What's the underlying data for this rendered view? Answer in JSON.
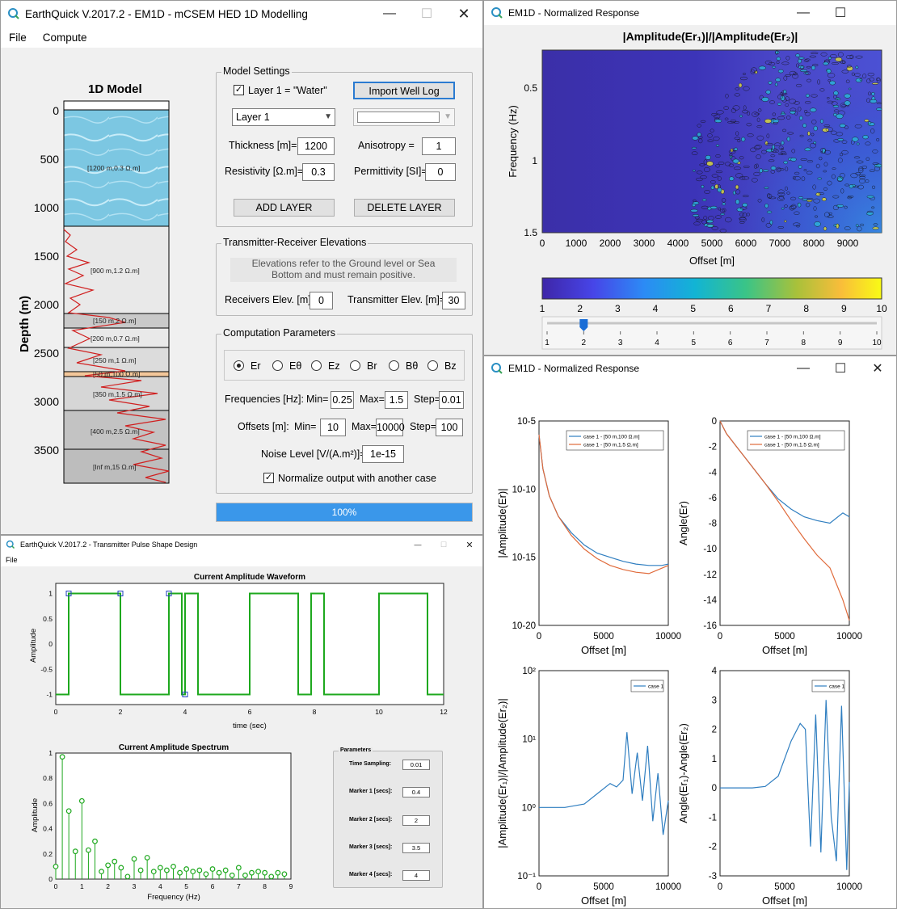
{
  "main": {
    "title": "EarthQuick V.2017.2 - EM1D - mCSEM HED 1D Modelling",
    "menu": [
      "File",
      "Compute"
    ],
    "model_title": "1D Model",
    "depth_label": "Depth (m)",
    "depth_ticks": [
      "0",
      "500",
      "1000",
      "1500",
      "2000",
      "2500",
      "3000",
      "3500"
    ],
    "layer_labels": [
      "[1200 m,0.3 Ω.m]",
      "[900 m,1.2 Ω.m]",
      "[150 m,2 Ω.m]",
      "[200 m,0.7 Ω.m]",
      "[250 m,1 Ω.m]",
      "[50 m,100 Ω.m]",
      "[350 m,1.5 Ω.m]",
      "[400 m,2.5 Ω.m]",
      "[Inf m,15 Ω.m]"
    ],
    "model_settings": {
      "legend": "Model Settings",
      "water_check_label": "Layer 1 = \"Water\"",
      "import_button": "Import Well Log",
      "layer_select": "Layer 1",
      "second_select": "",
      "thickness_label": "Thickness [m]=",
      "thickness_value": "1200",
      "anisotropy_label": "Anisotropy =",
      "anisotropy_value": "1",
      "resistivity_label": "Resistivity [Ω.m]=",
      "resistivity_value": "0.3",
      "permittivity_label": "Permittivity [SI]=",
      "permittivity_value": "0",
      "add_button": "ADD  LAYER",
      "delete_button": "DELETE  LAYER"
    },
    "tx_rx": {
      "legend": "Transmitter-Receiver Elevations",
      "note_line1": "Elevations refer to the Ground level or Sea",
      "note_line2": "Bottom and must remain positive.",
      "receivers_label": "Receivers Elev. [m]=",
      "receivers_value": "0",
      "transmitter_label": "Transmitter Elev. [m]=",
      "transmitter_value": "30"
    },
    "computation": {
      "legend": "Computation Parameters",
      "components": [
        "Er",
        "Eθ",
        "Ez",
        "Br",
        "Bθ",
        "Bz"
      ],
      "selected_component": "Er",
      "freq_label": "Frequencies [Hz]:",
      "min_label": "Min=",
      "max_label": "Max=",
      "step_label": "Step=",
      "freq_min": "0.25",
      "freq_max": "1.5",
      "freq_step": "0.01",
      "offsets_label": "Offsets [m]:",
      "off_min": "10",
      "off_max": "10000",
      "off_step": "100",
      "noise_label": "Noise Level [V/(A.m²)]=",
      "noise_value": "1e-15",
      "normalize_label": "Normalize output with another case"
    },
    "progress_text": "100%",
    "progress_fraction": 1.0
  },
  "norm_top": {
    "title": "EM1D - Normalized Response",
    "chart_title": "|Amplitude(Er₁)|/|Amplitude(Er₂)|",
    "ylabel": "Frequency (Hz)",
    "xlabel": "Offset [m]",
    "y_ticks": [
      "0.5",
      "1",
      "1.5"
    ],
    "x_ticks": [
      "0",
      "1000",
      "2000",
      "3000",
      "4000",
      "5000",
      "6000",
      "7000",
      "8000",
      "9000"
    ],
    "colorbar_ticks": [
      "1",
      "2",
      "3",
      "4",
      "5",
      "6",
      "7",
      "8",
      "9",
      "10"
    ],
    "slider_ticks": [
      "1",
      "2",
      "3",
      "4",
      "5",
      "6",
      "7",
      "8",
      "9",
      "10"
    ],
    "slider_value": 2
  },
  "norm_bottom": {
    "title": "EM1D - Normalized Response",
    "plots": [
      {
        "ylabel": "|Amplitude(Er)|",
        "xlabel": "Offset [m]",
        "y_ticks": [
          "10-5",
          "10-10",
          "10-15",
          "10-20"
        ],
        "x_ticks": [
          "0",
          "5000",
          "10000"
        ],
        "legend": [
          "case 1 - [50 m,100 Ω.m]",
          "case 1 - [50 m,1.5 Ω.m]"
        ]
      },
      {
        "ylabel": "Angle(Er)",
        "xlabel": "Offset [m]",
        "y_ticks": [
          "0",
          "-2",
          "-4",
          "-6",
          "-8",
          "-10",
          "-12",
          "-14",
          "-16"
        ],
        "x_ticks": [
          "0",
          "5000",
          "10000"
        ],
        "legend": [
          "case 1 - [50 m,100 Ω.m]",
          "case 1 - [50 m,1.5 Ω.m]"
        ]
      },
      {
        "ylabel": "|Amplitude(Er₁)|/|Amplitude(Er₂)|",
        "xlabel": "Offset [m]",
        "y_ticks": [
          "10²",
          "10¹",
          "10⁰",
          "10⁻¹"
        ],
        "x_ticks": [
          "0",
          "5000",
          "10000"
        ],
        "legend": [
          "case 1"
        ]
      },
      {
        "ylabel": "Angle(Er₁)-Angle(Er₂)",
        "xlabel": "Offset [m]",
        "y_ticks": [
          "4",
          "3",
          "2",
          "1",
          "0",
          "-1",
          "-2",
          "-3"
        ],
        "x_ticks": [
          "0",
          "5000",
          "10000"
        ],
        "legend": [
          "case 1"
        ]
      }
    ]
  },
  "pulse": {
    "title": "EarthQuick V.2017.2 - Transmitter Pulse Shape Design",
    "menu": [
      "File"
    ],
    "waveform_title": "Current Amplitude Waveform",
    "waveform_ylabel": "Amplitude",
    "waveform_xlabel": "time (sec)",
    "waveform_y_ticks": [
      "1",
      "0.5",
      "0",
      "-0.5",
      "-1"
    ],
    "waveform_x_ticks": [
      "0",
      "2",
      "4",
      "6",
      "8",
      "10",
      "12"
    ],
    "spectrum_title": "Current Amplitude Spectrum",
    "spectrum_ylabel": "Amplitude",
    "spectrum_xlabel": "Frequency (Hz)",
    "spectrum_y_ticks": [
      "1",
      "0.8",
      "0.6",
      "0.4",
      "0.2",
      "0"
    ],
    "spectrum_x_ticks": [
      "0",
      "1",
      "2",
      "3",
      "4",
      "5",
      "6",
      "7",
      "8",
      "9"
    ],
    "params_legend": "Parameters",
    "params": [
      {
        "label": "Time Sampling:",
        "value": "0.01"
      },
      {
        "label": "Marker 1 [secs]:",
        "value": "0.4"
      },
      {
        "label": "Marker 2 [secs]:",
        "value": "2"
      },
      {
        "label": "Marker 3 [secs]:",
        "value": "3.5"
      },
      {
        "label": "Marker 4 [secs]:",
        "value": "4"
      }
    ]
  },
  "chart_data": [
    {
      "type": "line",
      "title": "Current Amplitude Waveform",
      "xlabel": "time (sec)",
      "ylabel": "Amplitude",
      "xlim": [
        0,
        12
      ],
      "ylim": [
        -1.2,
        1.2
      ],
      "x": [
        0.4,
        0.4,
        2,
        2,
        3.5,
        3.5,
        3.9,
        3.9,
        4.0,
        4.0,
        4.4,
        4.4,
        6,
        6,
        7.5,
        7.5,
        7.9,
        7.9,
        8.3,
        8.3,
        10,
        10,
        11.5,
        11.5,
        12
      ],
      "y": [
        -1,
        1,
        1,
        -1,
        -1,
        1,
        1,
        -1,
        -1,
        1,
        1,
        -1,
        -1,
        1,
        1,
        -1,
        -1,
        1,
        1,
        -1,
        -1,
        1,
        1,
        -1,
        -1
      ],
      "markers": [
        [
          0.4,
          1
        ],
        [
          2,
          1
        ],
        [
          3.5,
          1
        ],
        [
          4,
          -1
        ]
      ]
    },
    {
      "type": "bar",
      "title": "Current Amplitude Spectrum",
      "xlabel": "Frequency (Hz)",
      "ylabel": "Amplitude",
      "xlim": [
        0,
        9
      ],
      "ylim": [
        0,
        1
      ],
      "x": [
        0,
        0.25,
        0.5,
        0.75,
        1.0,
        1.25,
        1.5,
        1.75,
        2.0,
        2.25,
        2.5,
        2.75,
        3.0,
        3.25,
        3.5,
        3.75,
        4.0,
        4.25,
        4.5,
        4.75,
        5.0,
        5.25,
        5.5,
        5.75,
        6.0,
        6.25,
        6.5,
        6.75,
        7.0,
        7.25,
        7.5,
        7.75,
        8.0,
        8.25,
        8.5,
        8.75
      ],
      "values": [
        0.1,
        0.97,
        0.54,
        0.22,
        0.62,
        0.23,
        0.3,
        0.06,
        0.11,
        0.14,
        0.09,
        0.02,
        0.16,
        0.07,
        0.17,
        0.06,
        0.09,
        0.07,
        0.1,
        0.05,
        0.08,
        0.06,
        0.07,
        0.04,
        0.08,
        0.05,
        0.07,
        0.03,
        0.09,
        0.03,
        0.05,
        0.06,
        0.05,
        0.02,
        0.05,
        0.04
      ]
    },
    {
      "type": "line",
      "title": "|Amplitude(Er)|",
      "xlabel": "Offset [m]",
      "ylabel": "|Amplitude(Er)|",
      "xlim": [
        0,
        10000
      ],
      "ylim": [
        -20,
        -5
      ],
      "series": [
        {
          "name": "case 1 - [50 m,100 Ω.m]",
          "x": [
            0,
            300,
            800,
            1500,
            2500,
            3500,
            4500,
            5500,
            6500,
            7500,
            8500,
            9500,
            10000
          ],
          "values": [
            -6,
            -8.5,
            -10.5,
            -12,
            -13.2,
            -14.1,
            -14.7,
            -15,
            -15.3,
            -15.5,
            -15.6,
            -15.6,
            -15.5
          ]
        },
        {
          "name": "case 1 - [50 m,1.5 Ω.m]",
          "x": [
            0,
            300,
            800,
            1500,
            2500,
            3500,
            4500,
            5500,
            6500,
            7500,
            8500,
            9500,
            10000
          ],
          "values": [
            -6,
            -8.5,
            -10.5,
            -12,
            -13.4,
            -14.4,
            -15.1,
            -15.6,
            -15.9,
            -16.1,
            -16.2,
            -15.8,
            -15.6
          ]
        }
      ]
    },
    {
      "type": "line",
      "title": "Angle(Er)",
      "xlabel": "Offset [m]",
      "ylabel": "Angle(Er)",
      "xlim": [
        0,
        10000
      ],
      "ylim": [
        -16,
        0
      ],
      "series": [
        {
          "name": "case 1 - [50 m,100 Ω.m]",
          "x": [
            0,
            500,
            1500,
            2500,
            3500,
            4500,
            5500,
            6500,
            7500,
            8500,
            9500,
            10000
          ],
          "values": [
            0,
            -1,
            -2.3,
            -3.6,
            -4.9,
            -6.1,
            -6.9,
            -7.5,
            -7.8,
            -8,
            -7.2,
            -7.5
          ]
        },
        {
          "name": "case 1 - [50 m,1.5 Ω.m]",
          "x": [
            0,
            500,
            1500,
            2500,
            3500,
            4500,
            5500,
            6500,
            7500,
            8500,
            9500,
            10000
          ],
          "values": [
            0,
            -1,
            -2.3,
            -3.6,
            -4.9,
            -6.3,
            -7.8,
            -9.2,
            -10.5,
            -11.5,
            -14,
            -15.6
          ]
        }
      ]
    },
    {
      "type": "line",
      "title": "|Amplitude(Er₁)|/|Amplitude(Er₂)|",
      "xlabel": "Offset [m]",
      "ylabel": "|Amplitude(Er₁)|/|Amplitude(Er₂)|",
      "xlim": [
        0,
        10000
      ],
      "ylim": [
        -1,
        2
      ],
      "series": [
        {
          "name": "case 1",
          "x": [
            0,
            2000,
            3500,
            4500,
            5500,
            6000,
            6500,
            6800,
            7200,
            7600,
            8000,
            8400,
            8800,
            9200,
            9600,
            10000
          ],
          "values": [
            0,
            0,
            0.05,
            0.2,
            0.35,
            0.3,
            0.4,
            1.1,
            0.2,
            0.8,
            0.1,
            0.9,
            -0.2,
            0.5,
            -0.4,
            0.1
          ]
        }
      ]
    },
    {
      "type": "line",
      "title": "Angle(Er₁)-Angle(Er₂)",
      "xlabel": "Offset [m]",
      "ylabel": "Angle(Er₁)-Angle(Er₂)",
      "xlim": [
        0,
        10000
      ],
      "ylim": [
        -3,
        4
      ],
      "series": [
        {
          "name": "case 1",
          "x": [
            0,
            2500,
            3500,
            4500,
            5500,
            6200,
            6600,
            7000,
            7400,
            7800,
            8200,
            8600,
            9000,
            9400,
            9800,
            10000
          ],
          "values": [
            0,
            0,
            0.05,
            0.4,
            1.6,
            2.2,
            2,
            -2,
            2.5,
            -2.2,
            3,
            -1,
            -2.5,
            2.8,
            -2.8,
            0.2
          ]
        }
      ]
    }
  ]
}
